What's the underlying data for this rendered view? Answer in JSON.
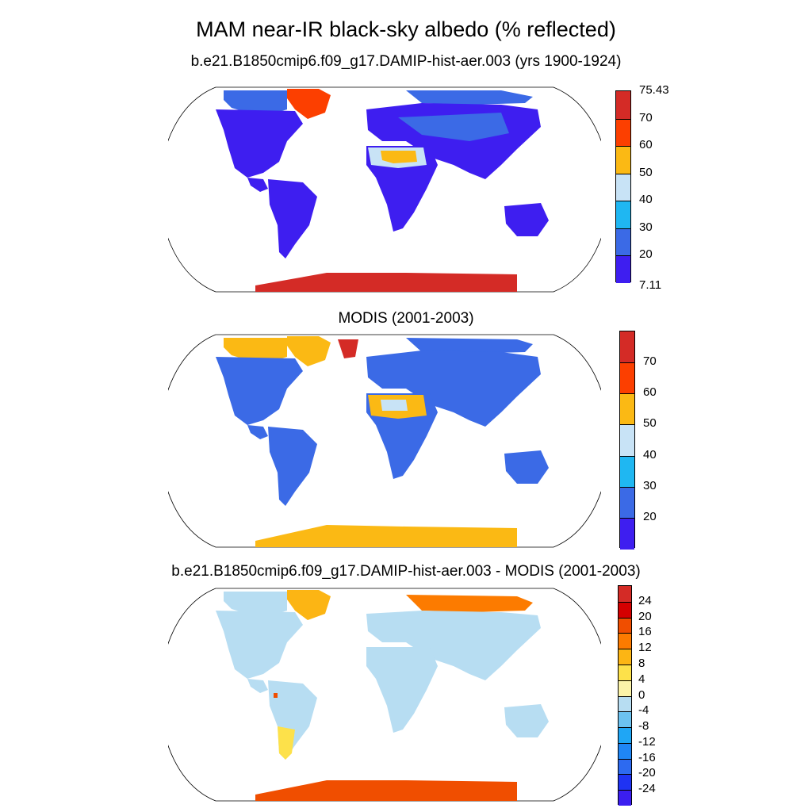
{
  "title": "MAM near-IR black-sky albedo (% reflected)",
  "panels": [
    {
      "subtitle": "b.e21.B1850cmip6.f09_g17.DAMIP-hist-aer.003 (yrs 1900-1924)",
      "colorbar": {
        "colors": [
          "#3e1ef0",
          "#3b6ae6",
          "#1fb7f2",
          "#c8e3f6",
          "#fbb914",
          "#fc3f00",
          "#d42b26"
        ],
        "labels": [
          "75.43",
          "70",
          "60",
          "50",
          "40",
          "30",
          "20",
          "7.11"
        ]
      }
    },
    {
      "subtitle": "MODIS (2001-2003)",
      "colorbar": {
        "colors": [
          "#3e1ef0",
          "#3b6ae6",
          "#1fb7f2",
          "#c8e3f6",
          "#fbb914",
          "#fc3f00",
          "#d42b26"
        ],
        "labels": [
          "70",
          "60",
          "50",
          "40",
          "30",
          "20"
        ]
      }
    },
    {
      "subtitle": "b.e21.B1850cmip6.f09_g17.DAMIP-hist-aer.003 - MODIS (2001-2003)",
      "colorbar": {
        "colors": [
          "#3b1ef0",
          "#1f33f3",
          "#2d6af0",
          "#1f86f5",
          "#1fa6f5",
          "#6cc2f0",
          "#b7ddf2",
          "#fbf3a8",
          "#fde14a",
          "#fcb514",
          "#fc7b00",
          "#f04e00",
          "#d40000",
          "#d42b26"
        ],
        "labels": [
          "24",
          "20",
          "16",
          "12",
          "8",
          "4",
          "0",
          "-4",
          "-8",
          "-12",
          "-16",
          "-20",
          "-24"
        ]
      }
    }
  ]
}
